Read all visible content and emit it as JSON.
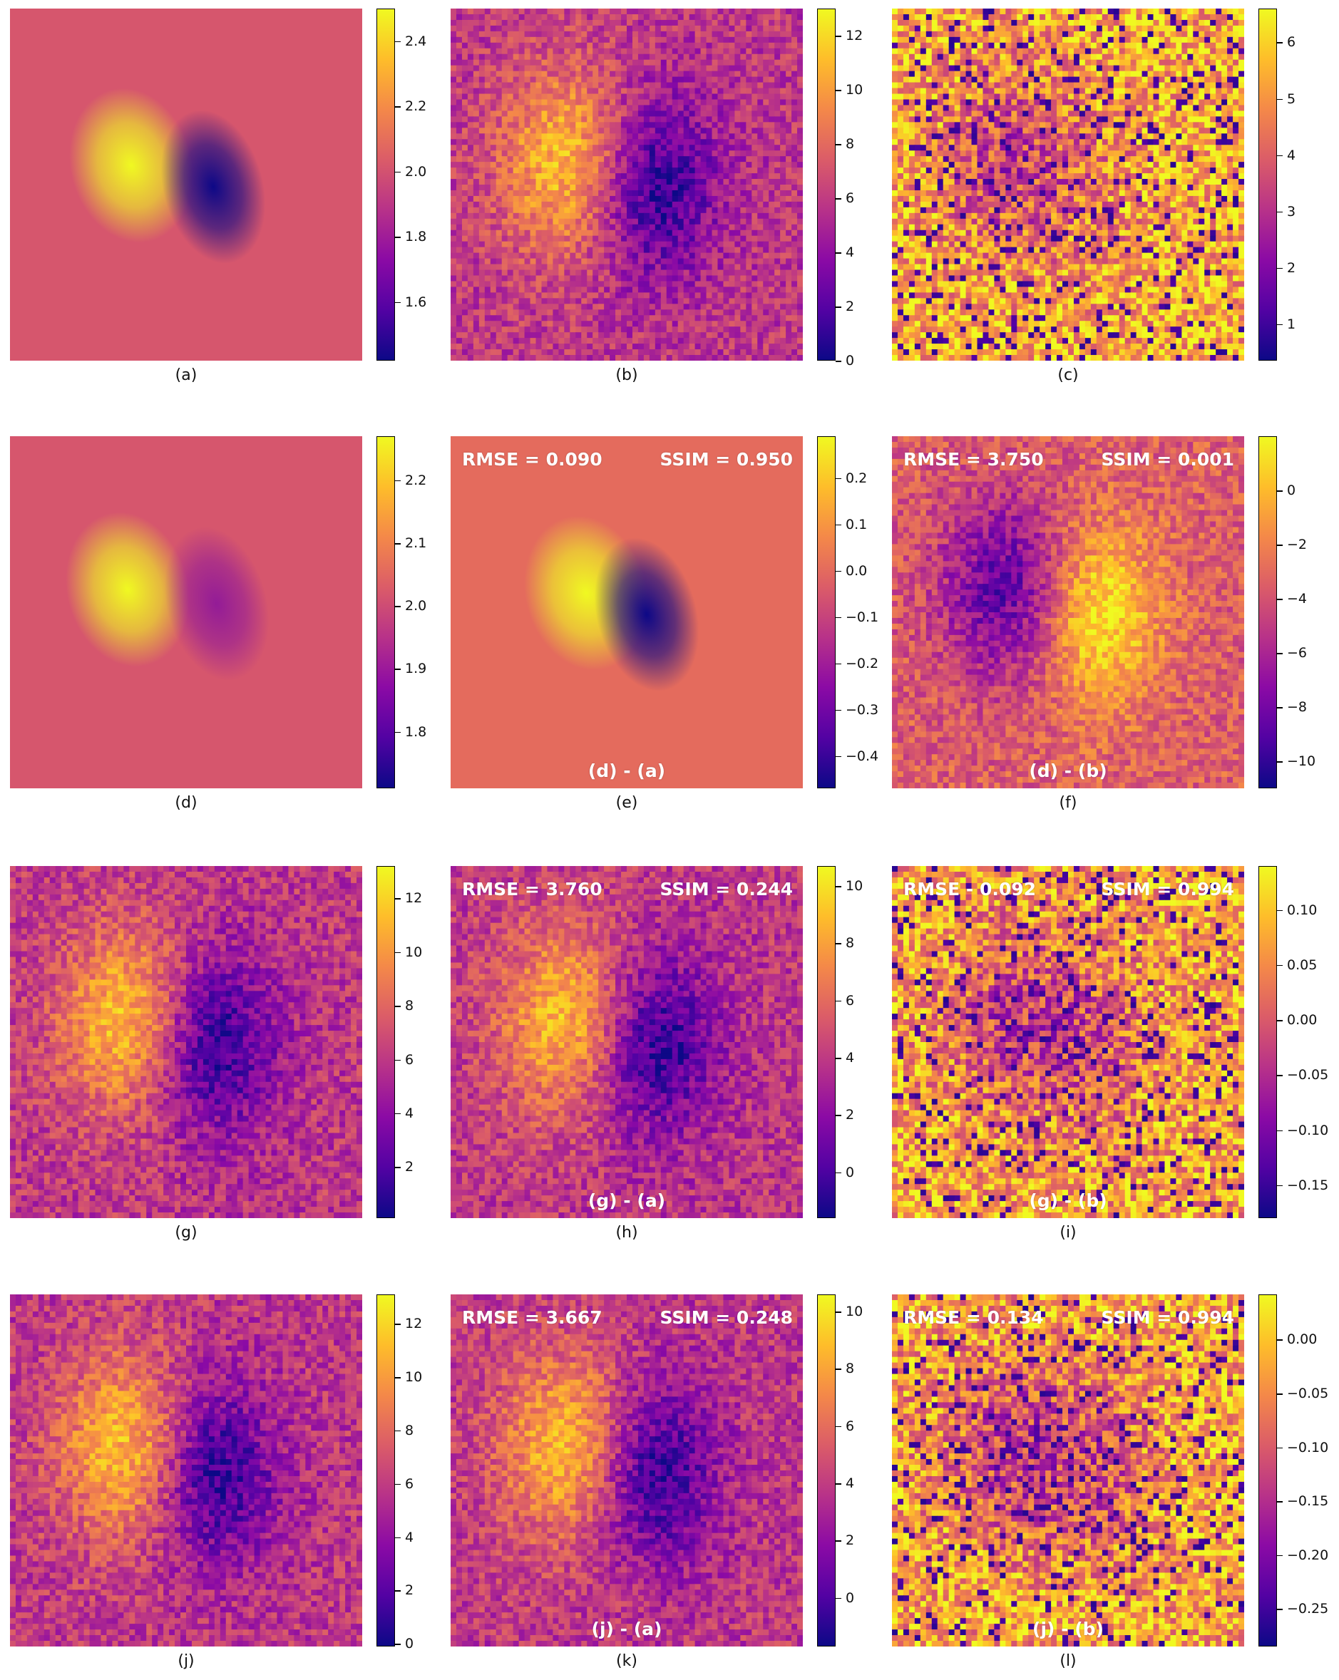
{
  "colors": {
    "colormap": [
      "#0d0887",
      "#5302a3",
      "#8b0aa5",
      "#b83289",
      "#db5c68",
      "#f48849",
      "#febd2a",
      "#f0f921"
    ],
    "annotation_text": "#ffffff"
  },
  "chart_data": [
    {
      "id": "a",
      "type": "heatmap",
      "caption": "(a)",
      "pattern": "smooth-dipole",
      "colorbar": {
        "range": [
          1.42,
          2.5
        ],
        "ticks": [
          1.6,
          1.8,
          2.0,
          2.2,
          2.4
        ],
        "labels": [
          "1.6",
          "1.8",
          "2.0",
          "2.2",
          "2.4"
        ]
      },
      "background_level": 0.55
    },
    {
      "id": "b",
      "type": "heatmap",
      "caption": "(b)",
      "pattern": "noisy-dipole",
      "colorbar": {
        "range": [
          0,
          13
        ],
        "ticks": [
          0,
          2,
          4,
          6,
          8,
          10,
          12
        ],
        "labels": [
          "0",
          "2",
          "4",
          "6",
          "8",
          "10",
          "12"
        ]
      },
      "background_level": 0.45
    },
    {
      "id": "c",
      "type": "heatmap",
      "caption": "(c)",
      "pattern": "noisy-inverted-high",
      "colorbar": {
        "range": [
          0.35,
          6.6
        ],
        "ticks": [
          1,
          2,
          3,
          4,
          5,
          6
        ],
        "labels": [
          "1",
          "2",
          "3",
          "4",
          "5",
          "6"
        ]
      },
      "background_level": 0.82
    },
    {
      "id": "d",
      "type": "heatmap",
      "caption": "(d)",
      "pattern": "smooth-dipole-weak",
      "colorbar": {
        "range": [
          1.71,
          2.27
        ],
        "ticks": [
          1.8,
          1.9,
          2.0,
          2.1,
          2.2
        ],
        "labels": [
          "1.8",
          "1.9",
          "2.0",
          "2.1",
          "2.2"
        ]
      },
      "background_level": 0.55
    },
    {
      "id": "e",
      "type": "heatmap",
      "caption": "(e)",
      "pattern": "smooth-dipole-diff",
      "colorbar": {
        "range": [
          -0.47,
          0.29
        ],
        "ticks": [
          -0.4,
          -0.3,
          -0.2,
          -0.1,
          0.0,
          0.1,
          0.2
        ],
        "labels": [
          "−0.4",
          "−0.3",
          "−0.2",
          "−0.1",
          "0.0",
          "0.1",
          "0.2"
        ]
      },
      "background_level": 0.62,
      "annotations": {
        "rmse": "RMSE = 0.090",
        "ssim": "SSIM = 0.950",
        "diff": "(d) - (a)"
      }
    },
    {
      "id": "f",
      "type": "heatmap",
      "caption": "(f)",
      "pattern": "noisy-inverted",
      "colorbar": {
        "range": [
          -11,
          2
        ],
        "ticks": [
          -10,
          -8,
          -6,
          -4,
          -2,
          0
        ],
        "labels": [
          "−10",
          "−8",
          "−6",
          "−4",
          "−2",
          "0"
        ]
      },
      "background_level": 0.58,
      "annotations": {
        "rmse": "RMSE = 3.750",
        "ssim": "SSIM = 0.001",
        "diff": "(d) - (b)"
      }
    },
    {
      "id": "g",
      "type": "heatmap",
      "caption": "(g)",
      "pattern": "noisy-dipole",
      "colorbar": {
        "range": [
          0.1,
          13.2
        ],
        "ticks": [
          2,
          4,
          6,
          8,
          10,
          12
        ],
        "labels": [
          "2",
          "4",
          "6",
          "8",
          "10",
          "12"
        ]
      },
      "background_level": 0.45
    },
    {
      "id": "h",
      "type": "heatmap",
      "caption": "(h)",
      "pattern": "noisy-dipole",
      "colorbar": {
        "range": [
          -1.6,
          10.7
        ],
        "ticks": [
          0,
          2,
          4,
          6,
          8,
          10
        ],
        "labels": [
          "0",
          "2",
          "4",
          "6",
          "8",
          "10"
        ]
      },
      "background_level": 0.45,
      "annotations": {
        "rmse": "RMSE = 3.760",
        "ssim": "SSIM = 0.244",
        "diff": "(g) - (a)"
      }
    },
    {
      "id": "i",
      "type": "heatmap",
      "caption": "(i)",
      "pattern": "noisy-inverted-high",
      "colorbar": {
        "range": [
          -0.18,
          0.14
        ],
        "ticks": [
          -0.15,
          -0.1,
          -0.05,
          0.0,
          0.05,
          0.1
        ],
        "labels": [
          "−0.15",
          "−0.10",
          "−0.05",
          "0.00",
          "0.05",
          "0.10"
        ]
      },
      "background_level": 0.8,
      "annotations": {
        "rmse": "RMSE - 0.092",
        "ssim": "SSIM = 0.994",
        "diff": "(g) - (b)"
      }
    },
    {
      "id": "j",
      "type": "heatmap",
      "caption": "(j)",
      "pattern": "noisy-dipole",
      "colorbar": {
        "range": [
          -0.1,
          13.1
        ],
        "ticks": [
          0,
          2,
          4,
          6,
          8,
          10,
          12
        ],
        "labels": [
          "0",
          "2",
          "4",
          "6",
          "8",
          "10",
          "12"
        ]
      },
      "background_level": 0.45
    },
    {
      "id": "k",
      "type": "heatmap",
      "caption": "(k)",
      "pattern": "noisy-dipole",
      "colorbar": {
        "range": [
          -1.7,
          10.6
        ],
        "ticks": [
          0,
          2,
          4,
          6,
          8,
          10
        ],
        "labels": [
          "0",
          "2",
          "4",
          "6",
          "8",
          "10"
        ]
      },
      "background_level": 0.45,
      "annotations": {
        "rmse": "RMSE = 3.667",
        "ssim": "SSIM = 0.248",
        "diff": "(j) - (a)"
      }
    },
    {
      "id": "l",
      "type": "heatmap",
      "caption": "(l)",
      "pattern": "noisy-inverted-high",
      "colorbar": {
        "range": [
          -0.285,
          0.042
        ],
        "ticks": [
          -0.25,
          -0.2,
          -0.15,
          -0.1,
          -0.05,
          0.0
        ],
        "labels": [
          "−0.25",
          "−0.20",
          "−0.15",
          "−0.10",
          "−0.05",
          "0.00"
        ]
      },
      "background_level": 0.8,
      "annotations": {
        "rmse": "RMSE = 0.134",
        "ssim": "SSIM = 0.994",
        "diff": "(j) - (b)"
      }
    }
  ]
}
